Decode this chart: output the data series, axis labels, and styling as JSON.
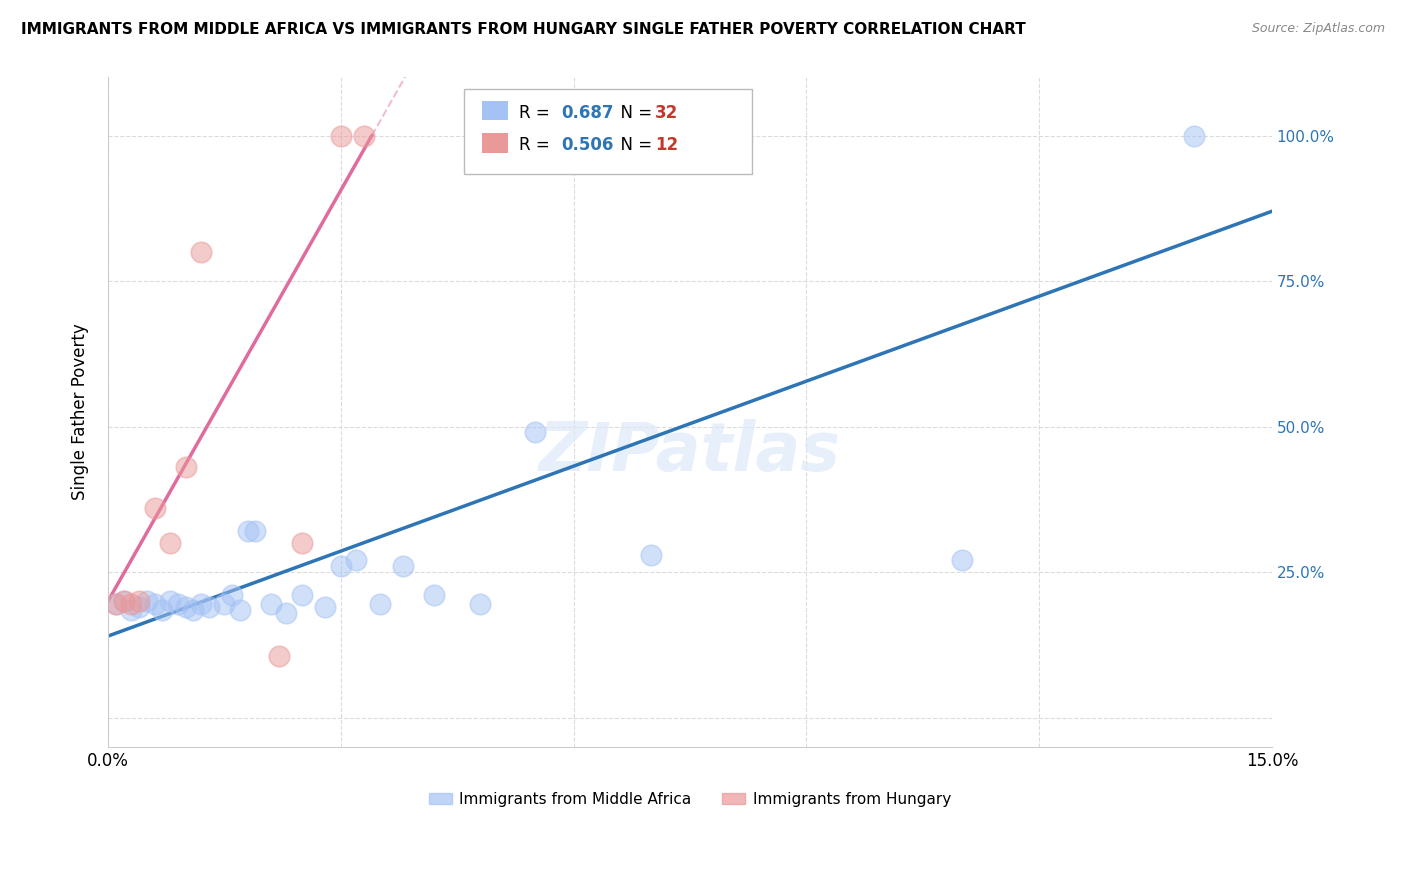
{
  "title": "IMMIGRANTS FROM MIDDLE AFRICA VS IMMIGRANTS FROM HUNGARY SINGLE FATHER POVERTY CORRELATION CHART",
  "source": "Source: ZipAtlas.com",
  "ylabel": "Single Father Poverty",
  "xlim": [
    0.0,
    0.15
  ],
  "ylim": [
    -0.05,
    1.1
  ],
  "blue_R": 0.687,
  "blue_N": 32,
  "pink_R": 0.506,
  "pink_N": 12,
  "watermark": "ZIPatlas",
  "blue_marker_color": "#a4c2f4",
  "pink_marker_color": "#ea9999",
  "blue_line_color": "#2e75b6",
  "pink_line_color": "#e06c9f",
  "blue_line_y0": 0.14,
  "blue_line_y1": 0.87,
  "pink_line_x0": 0.0,
  "pink_line_y0": 0.2,
  "pink_line_x1": 0.034,
  "pink_line_y1": 1.0,
  "blue_scatter": [
    [
      0.001,
      0.195
    ],
    [
      0.002,
      0.2
    ],
    [
      0.003,
      0.185
    ],
    [
      0.004,
      0.19
    ],
    [
      0.005,
      0.2
    ],
    [
      0.006,
      0.195
    ],
    [
      0.007,
      0.185
    ],
    [
      0.008,
      0.2
    ],
    [
      0.009,
      0.195
    ],
    [
      0.01,
      0.19
    ],
    [
      0.011,
      0.185
    ],
    [
      0.012,
      0.195
    ],
    [
      0.013,
      0.19
    ],
    [
      0.015,
      0.195
    ],
    [
      0.016,
      0.21
    ],
    [
      0.017,
      0.185
    ],
    [
      0.018,
      0.32
    ],
    [
      0.019,
      0.32
    ],
    [
      0.021,
      0.195
    ],
    [
      0.023,
      0.18
    ],
    [
      0.025,
      0.21
    ],
    [
      0.028,
      0.19
    ],
    [
      0.03,
      0.26
    ],
    [
      0.032,
      0.27
    ],
    [
      0.035,
      0.195
    ],
    [
      0.038,
      0.26
    ],
    [
      0.042,
      0.21
    ],
    [
      0.048,
      0.195
    ],
    [
      0.055,
      0.49
    ],
    [
      0.07,
      0.28
    ],
    [
      0.11,
      0.27
    ],
    [
      0.14,
      1.0
    ]
  ],
  "pink_scatter": [
    [
      0.001,
      0.195
    ],
    [
      0.002,
      0.2
    ],
    [
      0.003,
      0.195
    ],
    [
      0.004,
      0.2
    ],
    [
      0.006,
      0.36
    ],
    [
      0.008,
      0.3
    ],
    [
      0.01,
      0.43
    ],
    [
      0.012,
      0.8
    ],
    [
      0.022,
      0.105
    ],
    [
      0.025,
      0.3
    ],
    [
      0.03,
      1.0
    ],
    [
      0.033,
      1.0
    ]
  ],
  "legend_label_blue": "Immigrants from Middle Africa",
  "legend_label_pink": "Immigrants from Hungary",
  "legend_R_color": "#2e75b6",
  "legend_N_color": "#c0392b"
}
